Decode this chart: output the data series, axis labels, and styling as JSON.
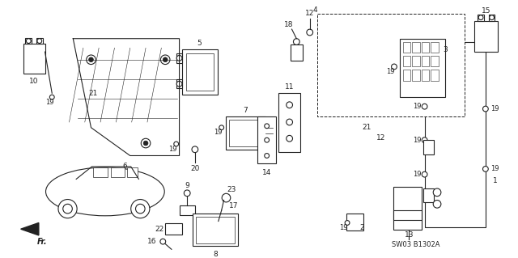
{
  "background_color": "#ffffff",
  "diagram_code": "SW03 B1302A",
  "fr_arrow_text": "Fr."
}
